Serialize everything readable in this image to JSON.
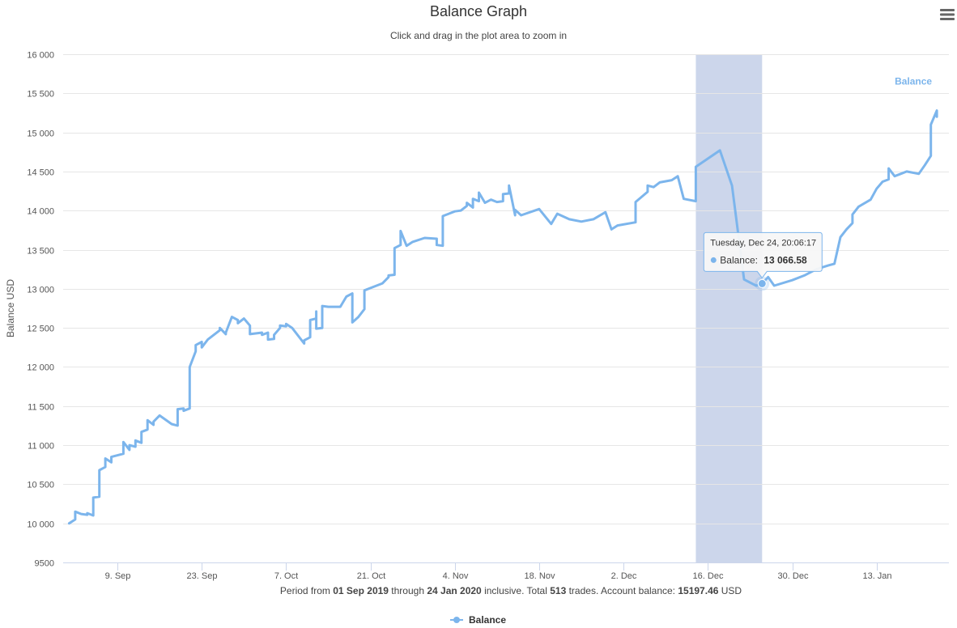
{
  "chart_data": {
    "type": "line",
    "title": "Balance Graph",
    "subtitle": "Click and drag in the plot area to zoom in",
    "ylabel": "Balance USD",
    "xlabel": "",
    "ylim": [
      9500,
      16000
    ],
    "yticks": [
      "9500",
      "10 000",
      "10 500",
      "11 000",
      "11 500",
      "12 000",
      "12 500",
      "13 000",
      "13 500",
      "14 000",
      "14 500",
      "15 000",
      "15 500",
      "16 000"
    ],
    "ytick_values": [
      9500,
      10000,
      10500,
      11000,
      11500,
      12000,
      12500,
      13000,
      13500,
      14000,
      14500,
      15000,
      15500,
      16000
    ],
    "xlim": [
      "2019-08-31",
      "2020-01-25"
    ],
    "xticks": [
      {
        "date": "2019-09-09",
        "label": "9. Sep"
      },
      {
        "date": "2019-09-23",
        "label": "23. Sep"
      },
      {
        "date": "2019-10-07",
        "label": "7. Oct"
      },
      {
        "date": "2019-10-21",
        "label": "21. Oct"
      },
      {
        "date": "2019-11-04",
        "label": "4. Nov"
      },
      {
        "date": "2019-11-18",
        "label": "18. Nov"
      },
      {
        "date": "2019-12-02",
        "label": "2. Dec"
      },
      {
        "date": "2019-12-16",
        "label": "16. Dec"
      },
      {
        "date": "2019-12-30",
        "label": "30. Dec"
      },
      {
        "date": "2020-01-13",
        "label": "13. Jan"
      }
    ],
    "highlight_band": {
      "from": "2019-12-14",
      "to": "2019-12-25",
      "color": "#ccd6eb"
    },
    "grid": true,
    "legend_position": "bottom-center",
    "series": [
      {
        "name": "Balance",
        "color": "#7cb5ec",
        "points": [
          [
            "2019-09-01",
            10000
          ],
          [
            "2019-09-02",
            10050
          ],
          [
            "2019-09-02",
            10150
          ],
          [
            "2019-09-03",
            10120
          ],
          [
            "2019-09-04",
            10110
          ],
          [
            "2019-09-04",
            10130
          ],
          [
            "2019-09-05",
            10100
          ],
          [
            "2019-09-05",
            10330
          ],
          [
            "2019-09-06",
            10340
          ],
          [
            "2019-09-06",
            10680
          ],
          [
            "2019-09-07",
            10720
          ],
          [
            "2019-09-07",
            10830
          ],
          [
            "2019-09-08",
            10780
          ],
          [
            "2019-09-08",
            10850
          ],
          [
            "2019-09-10",
            10890
          ],
          [
            "2019-09-10",
            11040
          ],
          [
            "2019-09-11",
            10940
          ],
          [
            "2019-09-11",
            11000
          ],
          [
            "2019-09-12",
            10980
          ],
          [
            "2019-09-12",
            11060
          ],
          [
            "2019-09-13",
            11030
          ],
          [
            "2019-09-13",
            11170
          ],
          [
            "2019-09-14",
            11200
          ],
          [
            "2019-09-14",
            11320
          ],
          [
            "2019-09-15",
            11260
          ],
          [
            "2019-09-15",
            11300
          ],
          [
            "2019-09-16",
            11380
          ],
          [
            "2019-09-18",
            11270
          ],
          [
            "2019-09-19",
            11250
          ],
          [
            "2019-09-19",
            11460
          ],
          [
            "2019-09-20",
            11470
          ],
          [
            "2019-09-20",
            11440
          ],
          [
            "2019-09-21",
            11470
          ],
          [
            "2019-09-21",
            11480
          ],
          [
            "2019-09-21",
            12000
          ],
          [
            "2019-09-22",
            12200
          ],
          [
            "2019-09-22",
            12280
          ],
          [
            "2019-09-23",
            12320
          ],
          [
            "2019-09-23",
            12250
          ],
          [
            "2019-09-24",
            12350
          ],
          [
            "2019-09-26",
            12470
          ],
          [
            "2019-09-26",
            12500
          ],
          [
            "2019-09-27",
            12420
          ],
          [
            "2019-09-27",
            12440
          ],
          [
            "2019-09-28",
            12640
          ],
          [
            "2019-09-29",
            12600
          ],
          [
            "2019-09-29",
            12560
          ],
          [
            "2019-09-30",
            12620
          ],
          [
            "2019-10-01",
            12530
          ],
          [
            "2019-10-01",
            12420
          ],
          [
            "2019-10-03",
            12440
          ],
          [
            "2019-10-03",
            12410
          ],
          [
            "2019-10-04",
            12440
          ],
          [
            "2019-10-04",
            12350
          ],
          [
            "2019-10-05",
            12360
          ],
          [
            "2019-10-05",
            12410
          ],
          [
            "2019-10-06",
            12500
          ],
          [
            "2019-10-06",
            12530
          ],
          [
            "2019-10-07",
            12520
          ],
          [
            "2019-10-07",
            12550
          ],
          [
            "2019-10-08",
            12500
          ],
          [
            "2019-10-10",
            12300
          ],
          [
            "2019-10-10",
            12340
          ],
          [
            "2019-10-11",
            12380
          ],
          [
            "2019-10-11",
            12600
          ],
          [
            "2019-10-12",
            12620
          ],
          [
            "2019-10-12",
            12710
          ],
          [
            "2019-10-12",
            12490
          ],
          [
            "2019-10-13",
            12500
          ],
          [
            "2019-10-13",
            12780
          ],
          [
            "2019-10-14",
            12770
          ],
          [
            "2019-10-16",
            12770
          ],
          [
            "2019-10-17",
            12900
          ],
          [
            "2019-10-18",
            12940
          ],
          [
            "2019-10-18",
            12570
          ],
          [
            "2019-10-19",
            12640
          ],
          [
            "2019-10-20",
            12740
          ],
          [
            "2019-10-20",
            12980
          ],
          [
            "2019-10-22",
            13040
          ],
          [
            "2019-10-23",
            13070
          ],
          [
            "2019-10-24",
            13150
          ],
          [
            "2019-10-24",
            13170
          ],
          [
            "2019-10-25",
            13180
          ],
          [
            "2019-10-25",
            13520
          ],
          [
            "2019-10-26",
            13560
          ],
          [
            "2019-10-26",
            13740
          ],
          [
            "2019-10-27",
            13550
          ],
          [
            "2019-10-28",
            13600
          ],
          [
            "2019-10-30",
            13650
          ],
          [
            "2019-11-01",
            13640
          ],
          [
            "2019-11-01",
            13560
          ],
          [
            "2019-11-02",
            13550
          ],
          [
            "2019-11-02",
            13930
          ],
          [
            "2019-11-03",
            13960
          ],
          [
            "2019-11-04",
            13990
          ],
          [
            "2019-11-05",
            14000
          ],
          [
            "2019-11-06",
            14060
          ],
          [
            "2019-11-06",
            14100
          ],
          [
            "2019-11-07",
            14040
          ],
          [
            "2019-11-07",
            14150
          ],
          [
            "2019-11-08",
            14120
          ],
          [
            "2019-11-08",
            14230
          ],
          [
            "2019-11-09",
            14100
          ],
          [
            "2019-11-10",
            14140
          ],
          [
            "2019-11-11",
            14110
          ],
          [
            "2019-11-12",
            14120
          ],
          [
            "2019-11-12",
            14210
          ],
          [
            "2019-11-13",
            14220
          ],
          [
            "2019-11-13",
            14320
          ],
          [
            "2019-11-14",
            13940
          ],
          [
            "2019-11-14",
            14010
          ],
          [
            "2019-11-15",
            13940
          ],
          [
            "2019-11-18",
            14020
          ],
          [
            "2019-11-20",
            13830
          ],
          [
            "2019-11-21",
            13960
          ],
          [
            "2019-11-23",
            13890
          ],
          [
            "2019-11-25",
            13860
          ],
          [
            "2019-11-27",
            13890
          ],
          [
            "2019-11-29",
            13980
          ],
          [
            "2019-11-30",
            13760
          ],
          [
            "2019-12-01",
            13810
          ],
          [
            "2019-12-04",
            13850
          ],
          [
            "2019-12-04",
            14110
          ],
          [
            "2019-12-06",
            14240
          ],
          [
            "2019-12-06",
            14320
          ],
          [
            "2019-12-07",
            14300
          ],
          [
            "2019-12-08",
            14360
          ],
          [
            "2019-12-10",
            14390
          ],
          [
            "2019-12-11",
            14440
          ],
          [
            "2019-12-12",
            14150
          ],
          [
            "2019-12-14",
            14120
          ],
          [
            "2019-12-14",
            14560
          ],
          [
            "2019-12-18",
            14770
          ],
          [
            "2019-12-20",
            14320
          ],
          [
            "2019-12-22",
            13120
          ],
          [
            "2019-12-24",
            13040
          ],
          [
            "2019-12-25",
            13066.58
          ],
          [
            "2019-12-26",
            13150
          ],
          [
            "2019-12-27",
            13040
          ],
          [
            "2019-12-30",
            13110
          ],
          [
            "2020-01-01",
            13170
          ],
          [
            "2020-01-03",
            13250
          ],
          [
            "2020-01-05",
            13300
          ],
          [
            "2020-01-06",
            13320
          ],
          [
            "2020-01-07",
            13660
          ],
          [
            "2020-01-08",
            13760
          ],
          [
            "2020-01-09",
            13840
          ],
          [
            "2020-01-09",
            13950
          ],
          [
            "2020-01-10",
            14050
          ],
          [
            "2020-01-12",
            14140
          ],
          [
            "2020-01-13",
            14280
          ],
          [
            "2020-01-14",
            14370
          ],
          [
            "2020-01-15",
            14400
          ],
          [
            "2020-01-15",
            14540
          ],
          [
            "2020-01-16",
            14440
          ],
          [
            "2020-01-17",
            14470
          ],
          [
            "2020-01-18",
            14500
          ],
          [
            "2020-01-20",
            14470
          ],
          [
            "2020-01-21",
            14580
          ],
          [
            "2020-01-22",
            14700
          ],
          [
            "2020-01-22",
            15100
          ],
          [
            "2020-01-23",
            15280
          ],
          [
            "2020-01-23",
            15200
          ]
        ]
      }
    ],
    "tooltip": {
      "date": "2019-12-25",
      "header": "Tuesday, Dec 24, 20:06:17",
      "series_label": "Balance:",
      "value_text": "13 066.58",
      "value": 13066.58
    },
    "series_end_label": "Balance"
  },
  "footer": {
    "part1": "Period from ",
    "start": "01 Sep 2019",
    "part2": " through ",
    "end": "24 Jan 2020",
    "part3": " inclusive. Total ",
    "trades": "513",
    "part4": " trades. Account balance: ",
    "balance": "15197.46",
    "part5": " USD"
  },
  "legend": {
    "label": "Balance"
  },
  "menu": {
    "icon": "hamburger-menu-icon"
  }
}
